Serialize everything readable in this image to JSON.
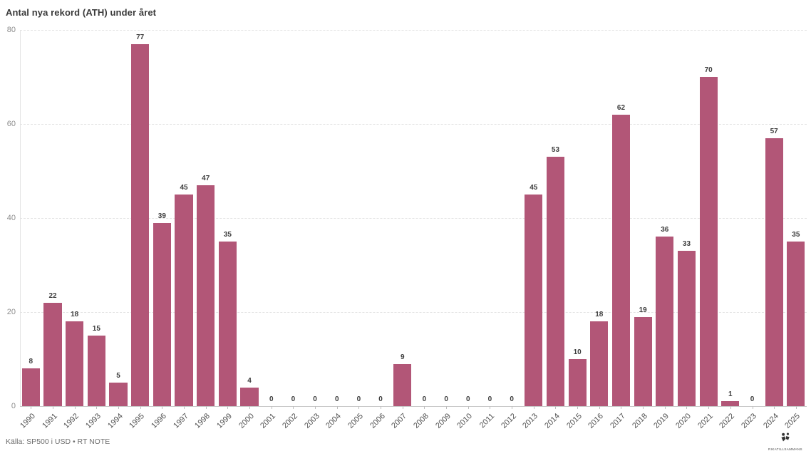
{
  "title": "Antal nya rekord (ATH) under året",
  "footer": {
    "source": "Källa: SP500 i USD • RT NOTE",
    "logo_text": "RIKATILLSAMMANS"
  },
  "colors": {
    "bar": "#b25677",
    "title_text": "#3a3a3a",
    "grid": "#e3e3e3",
    "axis": "#c9c9c9",
    "value_label": "#3d3d3d",
    "tick_label": "#525252"
  },
  "chart_data": {
    "type": "bar",
    "title": "Antal nya rekord (ATH) under året",
    "xlabel": "",
    "ylabel": "",
    "categories": [
      "1990",
      "1991",
      "1992",
      "1993",
      "1994",
      "1995",
      "1996",
      "1997",
      "1998",
      "1999",
      "2000",
      "2001",
      "2002",
      "2003",
      "2004",
      "2005",
      "2006",
      "2007",
      "2008",
      "2009",
      "2010",
      "2011",
      "2012",
      "2013",
      "2014",
      "2015",
      "2016",
      "2017",
      "2018",
      "2019",
      "2020",
      "2021",
      "2022",
      "2023",
      "2024",
      "2025"
    ],
    "values": [
      8,
      22,
      18,
      15,
      5,
      77,
      39,
      45,
      47,
      35,
      4,
      0,
      0,
      0,
      0,
      0,
      0,
      9,
      0,
      0,
      0,
      0,
      0,
      45,
      53,
      10,
      18,
      62,
      19,
      36,
      33,
      70,
      1,
      0,
      57,
      35
    ],
    "ylim": [
      0,
      80
    ],
    "yticks": [
      0,
      20,
      40,
      60,
      80
    ],
    "grid": "horizontal-dashed",
    "legend": "none",
    "bar_color": "#b25677",
    "value_labels": true,
    "x_tick_rotation": 45
  }
}
